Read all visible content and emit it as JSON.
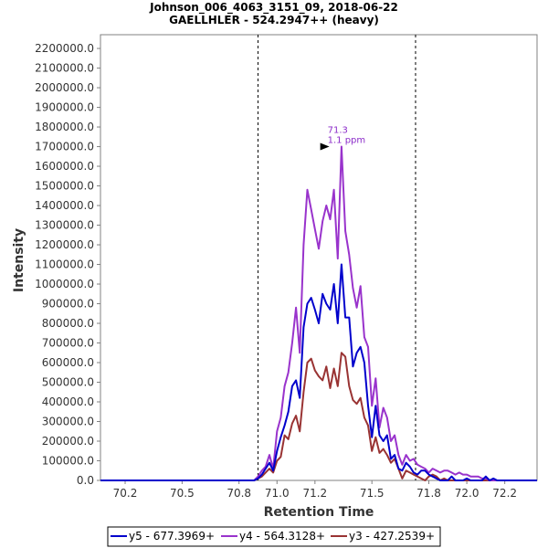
{
  "chart_data": {
    "type": "line",
    "title": "Johnson_006_4063_3151_09, 2018-06-22",
    "subtitle": "GAELLHLER - 524.2947++ (heavy)",
    "xlabel": "Retention Time",
    "ylabel": "Intensity",
    "xlim": [
      70.07,
      72.37
    ],
    "ylim": [
      0,
      2270000
    ],
    "x_ticks": [
      70.2,
      70.5,
      70.8,
      71.0,
      71.2,
      71.5,
      71.8,
      72.0,
      72.2
    ],
    "x_tick_labels": [
      "70.2",
      "70.5",
      "70.8",
      "71.0",
      "71.2",
      "71.5",
      "71.8",
      "72.0",
      "72.2"
    ],
    "y_ticks": [
      0,
      100000,
      200000,
      300000,
      400000,
      500000,
      600000,
      700000,
      800000,
      900000,
      1000000,
      1100000,
      1200000,
      1300000,
      1400000,
      1500000,
      1600000,
      1700000,
      1800000,
      1900000,
      2000000,
      2100000,
      2200000
    ],
    "y_tick_labels": [
      "0.0",
      "100000.0",
      "200000.0",
      "300000.0",
      "400000.0",
      "500000.0",
      "600000.0",
      "700000.0",
      "800000.0",
      "900000.0",
      "1000000.0",
      "1100000.0",
      "1200000.0",
      "1300000.0",
      "1400000.0",
      "1500000.0",
      "1600000.0",
      "1700000.0",
      "1800000.0",
      "1900000.0",
      "2000000.0",
      "2100000.0",
      "2200000.0"
    ],
    "grid": false,
    "legend_position": "bottom-center",
    "vlines": [
      70.9,
      71.73
    ],
    "annotation": {
      "x": 71.3,
      "y": 1700000,
      "line1": "71.3",
      "line2": "1.1 ppm",
      "color": "#8B2BC9"
    },
    "series": [
      {
        "name": "y5 - 677.3969+",
        "color": "#0000CC",
        "x": [
          70.07,
          70.88,
          70.9,
          70.92,
          70.94,
          70.96,
          70.98,
          71.0,
          71.02,
          71.04,
          71.06,
          71.08,
          71.1,
          71.12,
          71.14,
          71.16,
          71.18,
          71.2,
          71.22,
          71.24,
          71.26,
          71.28,
          71.3,
          71.32,
          71.34,
          71.36,
          71.38,
          71.4,
          71.42,
          71.44,
          71.46,
          71.48,
          71.5,
          71.52,
          71.54,
          71.56,
          71.58,
          71.6,
          71.62,
          71.64,
          71.66,
          71.68,
          71.7,
          71.72,
          71.74,
          71.76,
          71.78,
          71.8,
          71.82,
          71.84,
          71.86,
          71.88,
          71.9,
          71.92,
          71.94,
          71.96,
          71.98,
          72.0,
          72.02,
          72.04,
          72.06,
          72.08,
          72.1,
          72.12,
          72.14,
          72.16,
          72.18,
          72.2,
          72.37
        ],
        "y": [
          0,
          0,
          10000,
          30000,
          60000,
          90000,
          50000,
          150000,
          220000,
          280000,
          350000,
          480000,
          510000,
          420000,
          780000,
          900000,
          930000,
          870000,
          800000,
          950000,
          900000,
          870000,
          1000000,
          800000,
          1100000,
          830000,
          830000,
          580000,
          650000,
          680000,
          600000,
          380000,
          220000,
          380000,
          230000,
          200000,
          230000,
          110000,
          130000,
          60000,
          50000,
          90000,
          70000,
          40000,
          30000,
          50000,
          50000,
          30000,
          20000,
          10000,
          0,
          0,
          0,
          20000,
          0,
          0,
          0,
          10000,
          0,
          0,
          0,
          0,
          20000,
          0,
          10000,
          0,
          0,
          0,
          0
        ]
      },
      {
        "name": "y4 - 564.3128+",
        "color": "#9933CC",
        "x": [
          70.07,
          70.88,
          70.9,
          70.92,
          70.94,
          70.96,
          70.98,
          71.0,
          71.02,
          71.04,
          71.06,
          71.08,
          71.1,
          71.12,
          71.14,
          71.16,
          71.18,
          71.2,
          71.22,
          71.24,
          71.26,
          71.28,
          71.3,
          71.32,
          71.34,
          71.36,
          71.38,
          71.4,
          71.42,
          71.44,
          71.46,
          71.48,
          71.5,
          71.52,
          71.54,
          71.56,
          71.58,
          71.6,
          71.62,
          71.64,
          71.66,
          71.68,
          71.7,
          71.72,
          71.74,
          71.76,
          71.78,
          71.8,
          71.82,
          71.84,
          71.86,
          71.88,
          71.9,
          71.92,
          71.94,
          71.96,
          71.98,
          72.0,
          72.02,
          72.04,
          72.06,
          72.08,
          72.1,
          72.12,
          72.14,
          72.16,
          72.18,
          72.2,
          72.37
        ],
        "y": [
          0,
          0,
          20000,
          50000,
          70000,
          130000,
          60000,
          250000,
          320000,
          480000,
          550000,
          700000,
          880000,
          650000,
          1200000,
          1480000,
          1380000,
          1280000,
          1180000,
          1320000,
          1400000,
          1330000,
          1480000,
          1130000,
          1700000,
          1270000,
          1150000,
          980000,
          880000,
          990000,
          730000,
          680000,
          380000,
          520000,
          270000,
          370000,
          320000,
          200000,
          230000,
          130000,
          80000,
          130000,
          100000,
          110000,
          80000,
          70000,
          60000,
          40000,
          60000,
          50000,
          40000,
          50000,
          50000,
          40000,
          30000,
          40000,
          30000,
          30000,
          20000,
          20000,
          20000,
          10000,
          10000,
          0,
          0,
          0,
          0,
          0,
          0
        ]
      },
      {
        "name": "y3 - 427.2539+",
        "color": "#993333",
        "x": [
          70.07,
          70.88,
          70.9,
          70.92,
          70.94,
          70.96,
          70.98,
          71.0,
          71.02,
          71.04,
          71.06,
          71.08,
          71.1,
          71.12,
          71.14,
          71.16,
          71.18,
          71.2,
          71.22,
          71.24,
          71.26,
          71.28,
          71.3,
          71.32,
          71.34,
          71.36,
          71.38,
          71.4,
          71.42,
          71.44,
          71.46,
          71.48,
          71.5,
          71.52,
          71.54,
          71.56,
          71.58,
          71.6,
          71.62,
          71.64,
          71.66,
          71.68,
          71.7,
          71.72,
          71.74,
          71.76,
          71.78,
          71.8,
          71.82,
          71.84,
          71.86,
          71.88,
          71.9,
          71.92,
          71.94,
          71.96,
          71.98,
          72.0,
          72.02,
          72.04,
          72.06,
          72.08,
          72.1,
          72.12,
          72.14,
          72.16,
          72.18,
          72.2,
          72.37
        ],
        "y": [
          0,
          0,
          10000,
          20000,
          40000,
          60000,
          40000,
          100000,
          120000,
          230000,
          210000,
          290000,
          330000,
          250000,
          450000,
          600000,
          620000,
          560000,
          530000,
          510000,
          580000,
          470000,
          570000,
          480000,
          650000,
          630000,
          480000,
          410000,
          390000,
          420000,
          320000,
          280000,
          150000,
          220000,
          140000,
          160000,
          130000,
          90000,
          110000,
          60000,
          10000,
          50000,
          40000,
          30000,
          20000,
          10000,
          0,
          20000,
          30000,
          20000,
          0,
          10000,
          0,
          0,
          0,
          0,
          0,
          0,
          0,
          0,
          0,
          0,
          0,
          0,
          0,
          0,
          0,
          0,
          0
        ]
      }
    ]
  }
}
